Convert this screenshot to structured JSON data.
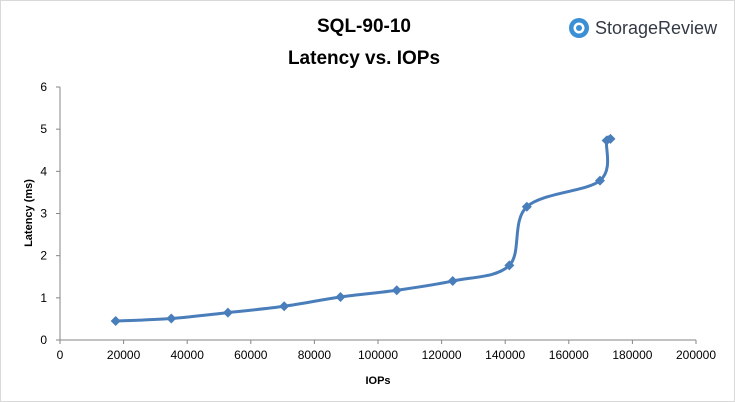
{
  "brand": {
    "name": "StorageReview",
    "icon": "storagereview-logo-icon",
    "icon_color": "#3b8fd4"
  },
  "chart_data": {
    "type": "line",
    "title": "SQL-90-10",
    "subtitle": "Latency vs. IOPs",
    "xlabel": "IOPs",
    "ylabel": "Latency (ms)",
    "xlim": [
      0,
      200000
    ],
    "ylim": [
      0,
      6
    ],
    "xticks": [
      0,
      20000,
      40000,
      60000,
      80000,
      100000,
      120000,
      140000,
      160000,
      180000,
      200000
    ],
    "yticks": [
      0,
      1,
      2,
      3,
      4,
      5,
      6
    ],
    "grid": false,
    "legend": "none",
    "line_color": "#4a7ebb",
    "series": [
      {
        "x": [
          17500,
          35000,
          52800,
          70500,
          88200,
          105900,
          123500,
          141300,
          146800,
          169800,
          171900,
          173100
        ],
        "y": [
          0.45,
          0.51,
          0.65,
          0.8,
          1.02,
          1.18,
          1.4,
          1.77,
          3.16,
          3.78,
          4.73,
          4.77
        ]
      }
    ]
  }
}
